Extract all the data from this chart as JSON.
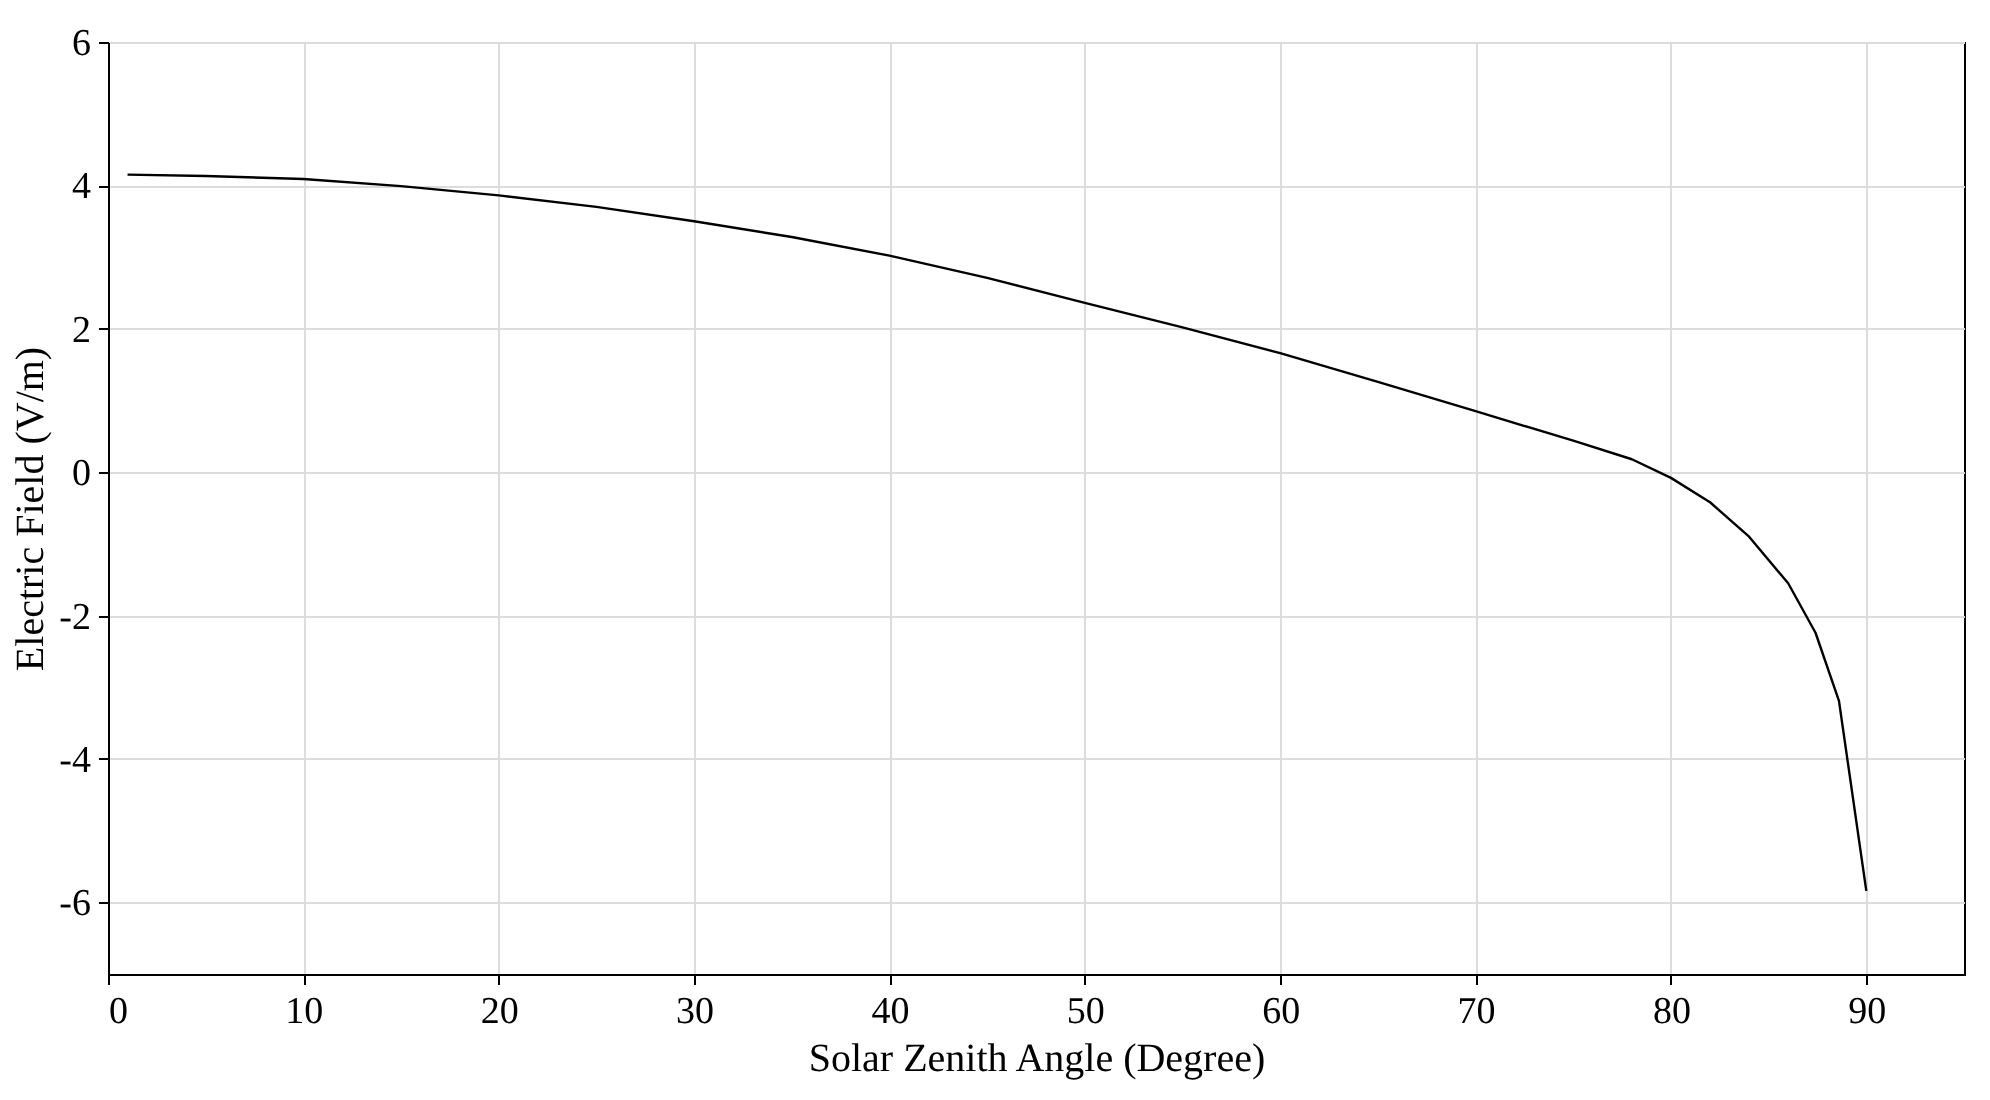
{
  "chart_data": {
    "type": "line",
    "xlabel": "Solar Zenith Angle (Degree)",
    "ylabel": "Electric Field (V/m)",
    "x": [
      1,
      5,
      10,
      15,
      20,
      25,
      30,
      35,
      40,
      45,
      50,
      55,
      60,
      65,
      70,
      75,
      78,
      80,
      82,
      84,
      86,
      87.4,
      88.6,
      90
    ],
    "series": [
      {
        "color": "#000000",
        "values": [
          4.15,
          4.13,
          4.09,
          3.99,
          3.86,
          3.7,
          3.5,
          3.28,
          3.02,
          2.71,
          2.36,
          2.02,
          1.66,
          1.26,
          0.85,
          0.44,
          0.18,
          -0.08,
          -0.42,
          -0.9,
          -1.55,
          -2.24,
          -3.19,
          -5.84
        ]
      }
    ],
    "xlim": [
      0,
      95
    ],
    "xticks": [
      0,
      10,
      20,
      30,
      40,
      50,
      60,
      70,
      80,
      90
    ],
    "ylim": [
      -7,
      6
    ],
    "yticks": [
      -6,
      -4,
      -2,
      0,
      2,
      4,
      6
    ],
    "grid": true
  }
}
